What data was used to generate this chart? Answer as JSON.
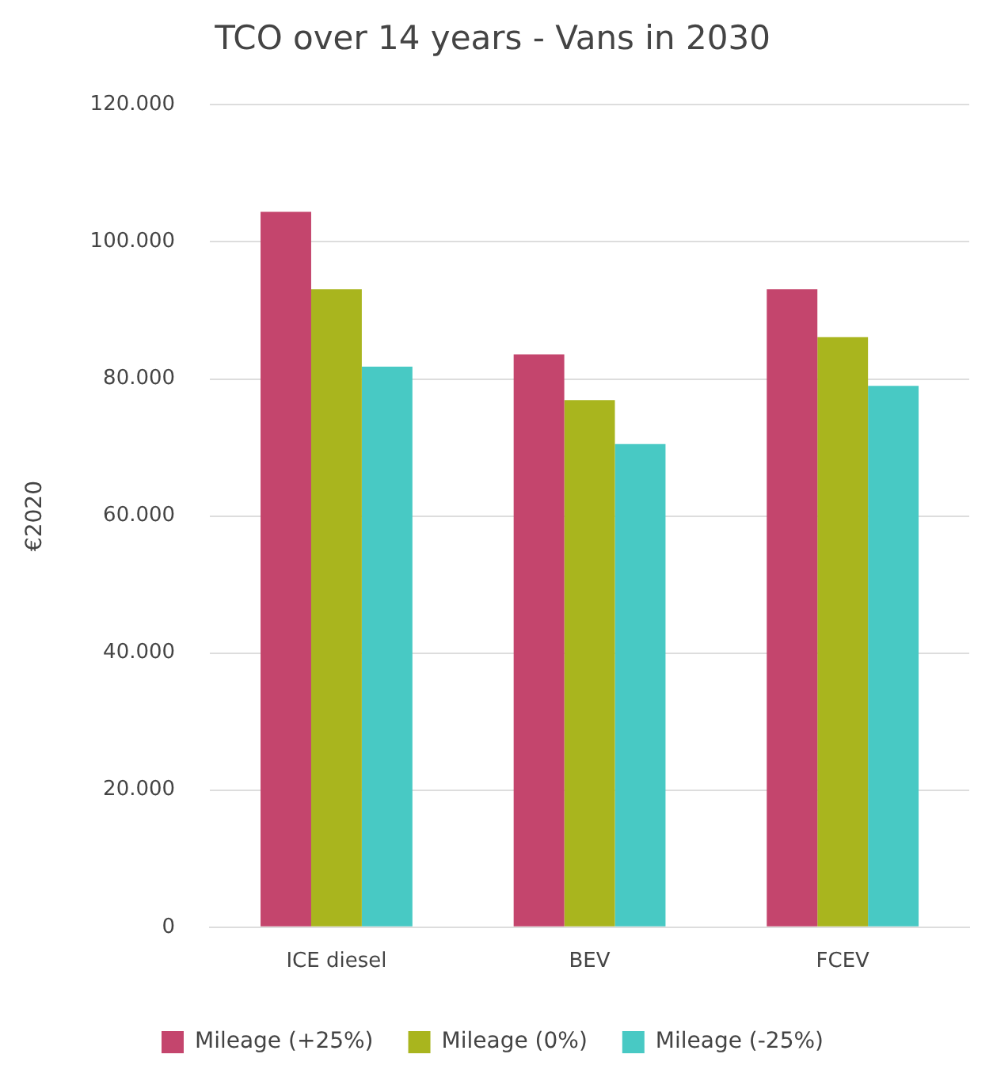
{
  "chart_data": {
    "type": "bar",
    "title": "TCO over 14 years - Vans in 2030",
    "ylabel": "€2020",
    "categories": [
      "ICE diesel",
      "BEV",
      "FCEV"
    ],
    "series": [
      {
        "name": "Mileage (+25%)",
        "color": "#c4456d",
        "values": [
          104400,
          83600,
          93100
        ]
      },
      {
        "name": "Mileage (0%)",
        "color": "#a9b51e",
        "values": [
          93100,
          76900,
          86100
        ]
      },
      {
        "name": "Mileage (-25%)",
        "color": "#48c9c4",
        "values": [
          81800,
          70500,
          79000
        ]
      }
    ],
    "ylim": [
      0,
      120000
    ],
    "yticks": [
      {
        "value": 0,
        "label": "0"
      },
      {
        "value": 20000,
        "label": "20.000"
      },
      {
        "value": 40000,
        "label": "40.000"
      },
      {
        "value": 60000,
        "label": "60.000"
      },
      {
        "value": 80000,
        "label": "80.000"
      },
      {
        "value": 100000,
        "label": "100.000"
      },
      {
        "value": 120000,
        "label": "120.000"
      }
    ],
    "grid": "y",
    "legend": "bottom"
  }
}
